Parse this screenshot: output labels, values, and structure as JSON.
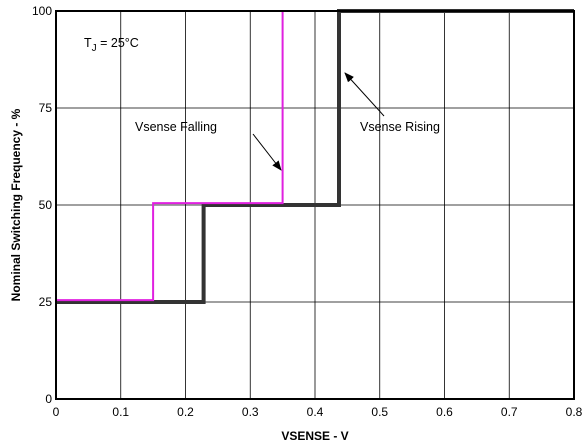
{
  "chart_data": {
    "type": "line",
    "title": "",
    "xlabel": "VSENSE - V",
    "ylabel": "Nominal Switching Frequency - %",
    "xlim": [
      0,
      0.8
    ],
    "ylim": [
      0,
      100
    ],
    "x_ticks": [
      "0",
      "0.1",
      "0.2",
      "0.3",
      "0.4",
      "0.5",
      "0.6",
      "0.7",
      "0.8"
    ],
    "y_ticks": [
      "0",
      "25",
      "50",
      "75",
      "100"
    ],
    "grid": true,
    "legend": "none",
    "series": [
      {
        "name": "Vsense Rising",
        "color": "#333333",
        "x": [
          0,
          0.228,
          0.228,
          0.437,
          0.437,
          0.8
        ],
        "y": [
          25,
          25,
          50,
          50,
          100,
          100
        ]
      },
      {
        "name": "Vsense Falling",
        "color": "#e020e0",
        "x": [
          0,
          0.15,
          0.15,
          0.35,
          0.35,
          0.8
        ],
        "y": [
          25.5,
          25.5,
          50.5,
          50.5,
          100,
          100
        ]
      }
    ],
    "annotations": {
      "condition_main": "T",
      "condition_sub": "J",
      "condition_rest": " = 25°C",
      "falling_label": "Vsense Falling",
      "rising_label": "Vsense Rising"
    }
  }
}
